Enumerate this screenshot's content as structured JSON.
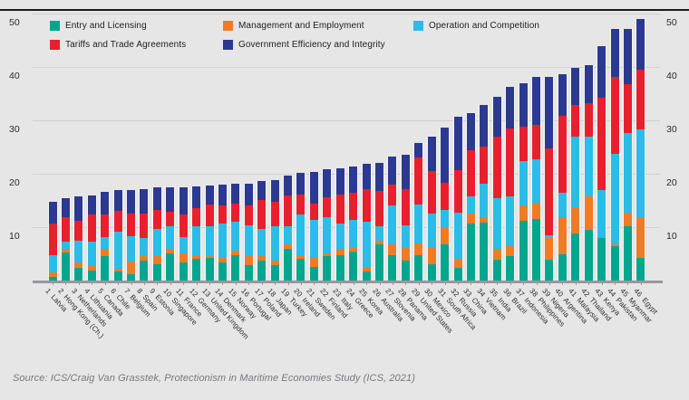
{
  "source_note": "Source: ICS/Craig Van Grasstek, Protectionism in Maritime Economies Study (ICS, 2021)",
  "colors": {
    "background": "#e6e6e7",
    "top_rule": "#1b1b1d",
    "gridline": "#cfcfd1",
    "baseline": "#97989b",
    "axis_text": "#2a2a2c",
    "source_text": "#77787b",
    "entry_licensing": "#00a78e",
    "management_employment": "#ef7b25",
    "operation_competition": "#2abde8",
    "tariffs_trade": "#e8202e",
    "government_efficiency": "#2b3990"
  },
  "chart_data": {
    "type": "bar",
    "stacked": true,
    "title": "",
    "xlabel": "",
    "ylabel": "",
    "ylim": [
      0,
      50
    ],
    "yticks": [
      10,
      20,
      30,
      40,
      50
    ],
    "grid": true,
    "legend_position": "top",
    "legend": [
      {
        "label": "Entry and Licensing",
        "color": "#00a78e"
      },
      {
        "label": "Management and Employment",
        "color": "#ef7b25"
      },
      {
        "label": "Operation and Competition",
        "color": "#2abde8"
      },
      {
        "label": "Tariffs and Trade Agreements",
        "color": "#e8202e"
      },
      {
        "label": "Government Efficiency and Integrity",
        "color": "#2b3990"
      }
    ],
    "categories": [
      {
        "rank": 1,
        "name": "Latvia"
      },
      {
        "rank": 2,
        "name": "Hong Kong (Ch.)"
      },
      {
        "rank": 3,
        "name": "Netherlands"
      },
      {
        "rank": 4,
        "name": "Lithuania"
      },
      {
        "rank": 5,
        "name": "Canada"
      },
      {
        "rank": 6,
        "name": "Chile"
      },
      {
        "rank": 7,
        "name": "Belgium"
      },
      {
        "rank": 8,
        "name": "Spain"
      },
      {
        "rank": 9,
        "name": "Estonia"
      },
      {
        "rank": 10,
        "name": "Singapore"
      },
      {
        "rank": 11,
        "name": "France"
      },
      {
        "rank": 12,
        "name": "Germany"
      },
      {
        "rank": 13,
        "name": "United Kingdom"
      },
      {
        "rank": 14,
        "name": "Denmark"
      },
      {
        "rank": 15,
        "name": "Norway"
      },
      {
        "rank": 16,
        "name": "Portugal"
      },
      {
        "rank": 17,
        "name": "Poland"
      },
      {
        "rank": 18,
        "name": "Japan"
      },
      {
        "rank": 19,
        "name": "Turkey"
      },
      {
        "rank": 20,
        "name": "Ireland"
      },
      {
        "rank": 21,
        "name": "Sweden"
      },
      {
        "rank": 22,
        "name": "Finland"
      },
      {
        "rank": 23,
        "name": "Italy"
      },
      {
        "rank": 24,
        "name": "Greece"
      },
      {
        "rank": 25,
        "name": "Korea"
      },
      {
        "rank": 26,
        "name": "Australia"
      },
      {
        "rank": 27,
        "name": "Slovenia"
      },
      {
        "rank": 28,
        "name": "Panama"
      },
      {
        "rank": 29,
        "name": "United States"
      },
      {
        "rank": 30,
        "name": "Mexico"
      },
      {
        "rank": 31,
        "name": "South Africa"
      },
      {
        "rank": 32,
        "name": "Russia"
      },
      {
        "rank": 33,
        "name": "China"
      },
      {
        "rank": 34,
        "name": "Vietnam"
      },
      {
        "rank": 35,
        "name": "India"
      },
      {
        "rank": 36,
        "name": "Brazil"
      },
      {
        "rank": 37,
        "name": "Indonesia"
      },
      {
        "rank": 38,
        "name": "Philippines"
      },
      {
        "rank": 39,
        "name": "Nigeria"
      },
      {
        "rank": 40,
        "name": "Argentina"
      },
      {
        "rank": 41,
        "name": "Malaysia"
      },
      {
        "rank": 42,
        "name": "Thailand"
      },
      {
        "rank": 43,
        "name": "Kenya"
      },
      {
        "rank": 44,
        "name": "Pakistan"
      },
      {
        "rank": 45,
        "name": "Myanmar"
      },
      {
        "rank": 46,
        "name": "Egypt"
      }
    ],
    "series": [
      {
        "name": "Entry and Licensing",
        "color": "#00a78e",
        "values": [
          0.7,
          5.2,
          2.3,
          1.8,
          4.5,
          1.7,
          1.2,
          3.8,
          3.1,
          5.1,
          3.4,
          4.0,
          4.2,
          3.4,
          4.8,
          2.8,
          3.7,
          2.8,
          5.9,
          4.0,
          2.5,
          4.5,
          4.8,
          5.4,
          1.7,
          6.8,
          4.7,
          3.7,
          4.8,
          3.1,
          6.7,
          2.3,
          10.6,
          10.9,
          3.9,
          4.5,
          11.2,
          11.5,
          3.9,
          4.9,
          8.8,
          9.5,
          7.9,
          6.5,
          10.2,
          4.2
        ]
      },
      {
        "name": "Management and Employment",
        "color": "#ef7b25",
        "values": [
          0.9,
          0.8,
          1.1,
          1.0,
          1.4,
          0.5,
          2.4,
          1.0,
          1.4,
          0.8,
          1.7,
          0.8,
          0.3,
          0.8,
          0.8,
          1.7,
          0.8,
          1.0,
          0.8,
          0.8,
          1.7,
          0.6,
          1.1,
          0.8,
          0.7,
          0.7,
          2.1,
          2.5,
          2.2,
          3.1,
          3.1,
          1.7,
          2.0,
          0.8,
          2.0,
          2.0,
          2.8,
          3.1,
          4.2,
          6.9,
          4.9,
          6.2,
          0.3,
          0.3,
          2.5,
          7.5
        ]
      },
      {
        "name": "Operation and Competition",
        "color": "#2abde8",
        "values": [
          3.2,
          1.2,
          4.0,
          4.5,
          2.3,
          6.9,
          4.7,
          3.1,
          5.1,
          4.2,
          3.1,
          5.4,
          5.6,
          6.5,
          5.4,
          5.9,
          5.1,
          6.4,
          3.4,
          7.6,
          7.1,
          6.8,
          4.8,
          5.1,
          8.6,
          2.7,
          7.3,
          4.2,
          7.3,
          6.4,
          3.4,
          8.7,
          3.1,
          6.4,
          9.5,
          9.2,
          8.4,
          8.1,
          0.4,
          4.7,
          13.2,
          11.2,
          8.8,
          17.0,
          15.0,
          16.6
        ]
      },
      {
        "name": "Tariffs and Trade Agreements",
        "color": "#e8202e",
        "values": [
          5.8,
          4.7,
          3.7,
          5.1,
          4.2,
          4.0,
          4.2,
          4.6,
          3.7,
          2.8,
          4.2,
          3.4,
          4.2,
          3.4,
          3.4,
          3.7,
          5.4,
          4.5,
          5.9,
          3.7,
          3.1,
          3.7,
          5.4,
          5.1,
          6.2,
          6.5,
          3.9,
          6.7,
          8.7,
          7.9,
          5.1,
          7.9,
          8.7,
          7.0,
          11.5,
          12.8,
          6.4,
          6.4,
          16.2,
          14.3,
          6.0,
          6.3,
          17.3,
          14.4,
          9.0,
          11.2
        ]
      },
      {
        "name": "Government Efficiency and Integrity",
        "color": "#2b3990",
        "values": [
          4.1,
          3.5,
          4.7,
          3.6,
          4.2,
          3.8,
          4.4,
          4.7,
          4.2,
          4.6,
          5.1,
          4.1,
          3.5,
          3.8,
          3.7,
          4.1,
          3.6,
          4.1,
          3.7,
          4.0,
          5.9,
          5.3,
          5.0,
          5.0,
          4.7,
          5.3,
          5.2,
          6.5,
          2.8,
          6.5,
          10.4,
          10.0,
          7.0,
          7.7,
          7.5,
          7.7,
          8.2,
          9.1,
          13.5,
          7.9,
          6.9,
          7.1,
          9.6,
          8.9,
          10.5,
          9.5
        ]
      }
    ]
  }
}
